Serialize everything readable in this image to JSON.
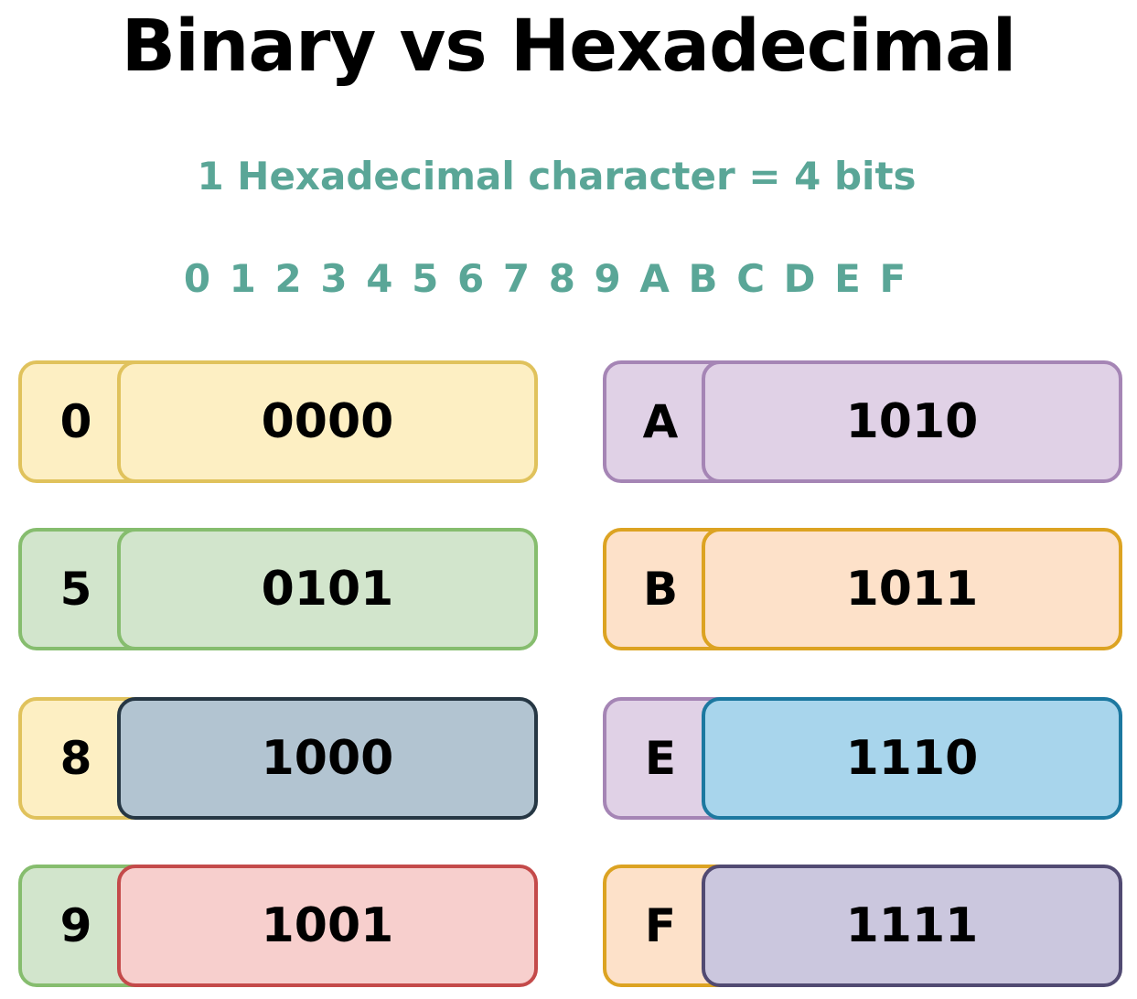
{
  "title": "Binary vs Hexadecimal",
  "subtitle": "1 Hexadecimal character = 4 bits",
  "hex_digits": [
    "0",
    "1",
    "2",
    "3",
    "4",
    "5",
    "6",
    "7",
    "8",
    "9",
    "A",
    "B",
    "C",
    "D",
    "E",
    "F"
  ],
  "colors": {
    "accent_text": "#5aa697",
    "yellow_fill": "#fdefc3",
    "yellow_border": "#e0c25c",
    "green_fill": "#d2e5cc",
    "green_border": "#86bd6e",
    "purple_fill": "#e0d1e6",
    "purple_border": "#a585b5",
    "orange_fill": "#fde1c9",
    "orange_border": "#dca322",
    "slate_fill": "#b2c4d1",
    "slate_border": "#263744",
    "red_fill": "#f7cfcd",
    "red_border": "#c44a4a",
    "blue_fill": "#a8d5ec",
    "blue_border": "#1c78a0",
    "lavender_fill": "#cbc7de",
    "lavender_border": "#514a72"
  },
  "pairs": [
    {
      "hex": "0",
      "binary": "0000",
      "hex_fill": "#fdefc3",
      "hex_border": "#e0c25c",
      "bin_fill": "#fdefc3",
      "bin_border": "#e0c25c"
    },
    {
      "hex": "A",
      "binary": "1010",
      "hex_fill": "#e0d1e6",
      "hex_border": "#a585b5",
      "bin_fill": "#e0d1e6",
      "bin_border": "#a585b5"
    },
    {
      "hex": "5",
      "binary": "0101",
      "hex_fill": "#d2e5cc",
      "hex_border": "#86bd6e",
      "bin_fill": "#d2e5cc",
      "bin_border": "#86bd6e"
    },
    {
      "hex": "B",
      "binary": "1011",
      "hex_fill": "#fde1c9",
      "hex_border": "#dca322",
      "bin_fill": "#fde1c9",
      "bin_border": "#dca322"
    },
    {
      "hex": "8",
      "binary": "1000",
      "hex_fill": "#fdefc3",
      "hex_border": "#e0c25c",
      "bin_fill": "#b2c4d1",
      "bin_border": "#263744"
    },
    {
      "hex": "E",
      "binary": "1110",
      "hex_fill": "#e0d1e6",
      "hex_border": "#a585b5",
      "bin_fill": "#a8d5ec",
      "bin_border": "#1c78a0"
    },
    {
      "hex": "9",
      "binary": "1001",
      "hex_fill": "#d2e5cc",
      "hex_border": "#86bd6e",
      "bin_fill": "#f7cfcd",
      "bin_border": "#c44a4a"
    },
    {
      "hex": "F",
      "binary": "1111",
      "hex_fill": "#fde1c9",
      "hex_border": "#dca322",
      "bin_fill": "#cbc7de",
      "bin_border": "#514a72"
    }
  ]
}
